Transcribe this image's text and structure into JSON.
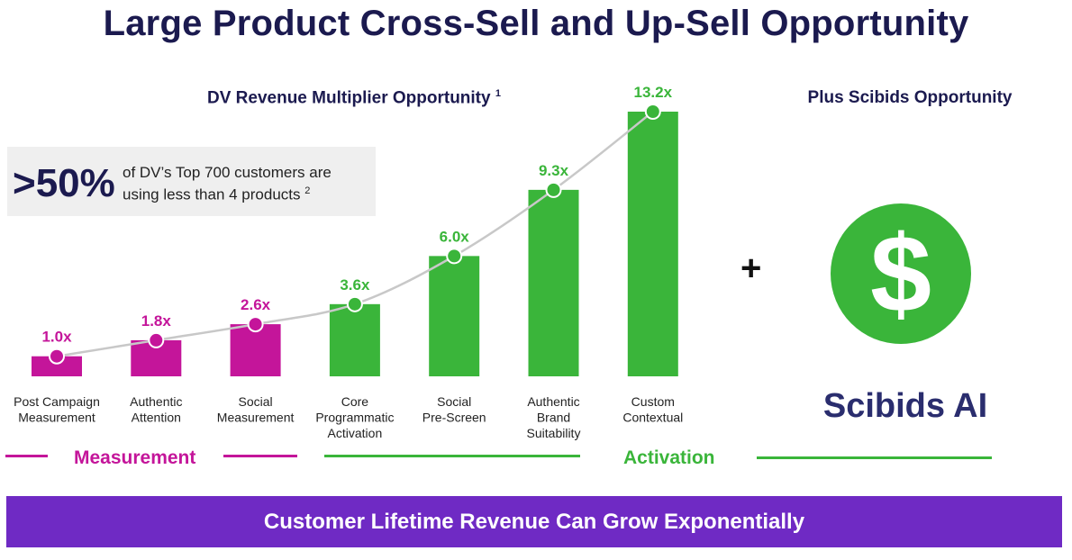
{
  "title": "Large Product Cross-Sell and Up-Sell Opportunity",
  "stat": {
    "value": ">50%",
    "text": "of DV’s Top 700 customers are using less than 4 products",
    "footnote": "2"
  },
  "scibids": {
    "heading": "Plus Scibids Opportunity",
    "plus": "+",
    "dollar_symbol": "$",
    "icon": "dollar-icon",
    "name": "Scibids AI"
  },
  "groups": {
    "measurement": "Measurement",
    "activation": "Activation"
  },
  "banner": "Customer Lifetime Revenue Can Grow Exponentially",
  "colors": {
    "measurement": "#c4159a",
    "activation": "#3ab53a",
    "title": "#1b1a4f",
    "banner": "#6f2ac4",
    "curve": "#c8c8c8"
  },
  "chart_data": {
    "type": "bar",
    "title": "DV Revenue Multiplier Opportunity",
    "title_footnote": "1",
    "categories": [
      "Post Campaign Measurement",
      "Authentic Attention",
      "Social Measurement",
      "Core Programmatic Activation",
      "Social Pre-Screen",
      "Authentic Brand Suitability",
      "Custom Contextual"
    ],
    "category_lines": [
      [
        "Post Campaign",
        "Measurement"
      ],
      [
        "Authentic",
        "Attention"
      ],
      [
        "Social",
        "Measurement"
      ],
      [
        "Core",
        "Programmatic",
        "Activation"
      ],
      [
        "Social",
        "Pre-Screen"
      ],
      [
        "Authentic",
        "Brand",
        "Suitability"
      ],
      [
        "Custom",
        "Contextual"
      ]
    ],
    "values": [
      1.0,
      1.8,
      2.6,
      3.6,
      6.0,
      9.3,
      13.2
    ],
    "value_labels": [
      "1.0x",
      "1.8x",
      "2.6x",
      "3.6x",
      "6.0x",
      "9.3x",
      "13.2x"
    ],
    "groups": [
      "measurement",
      "measurement",
      "measurement",
      "activation",
      "activation",
      "activation",
      "activation"
    ],
    "ylim": [
      0,
      13.2
    ],
    "xlabel": "",
    "ylabel": "",
    "grid": false,
    "trend_curve": true
  }
}
